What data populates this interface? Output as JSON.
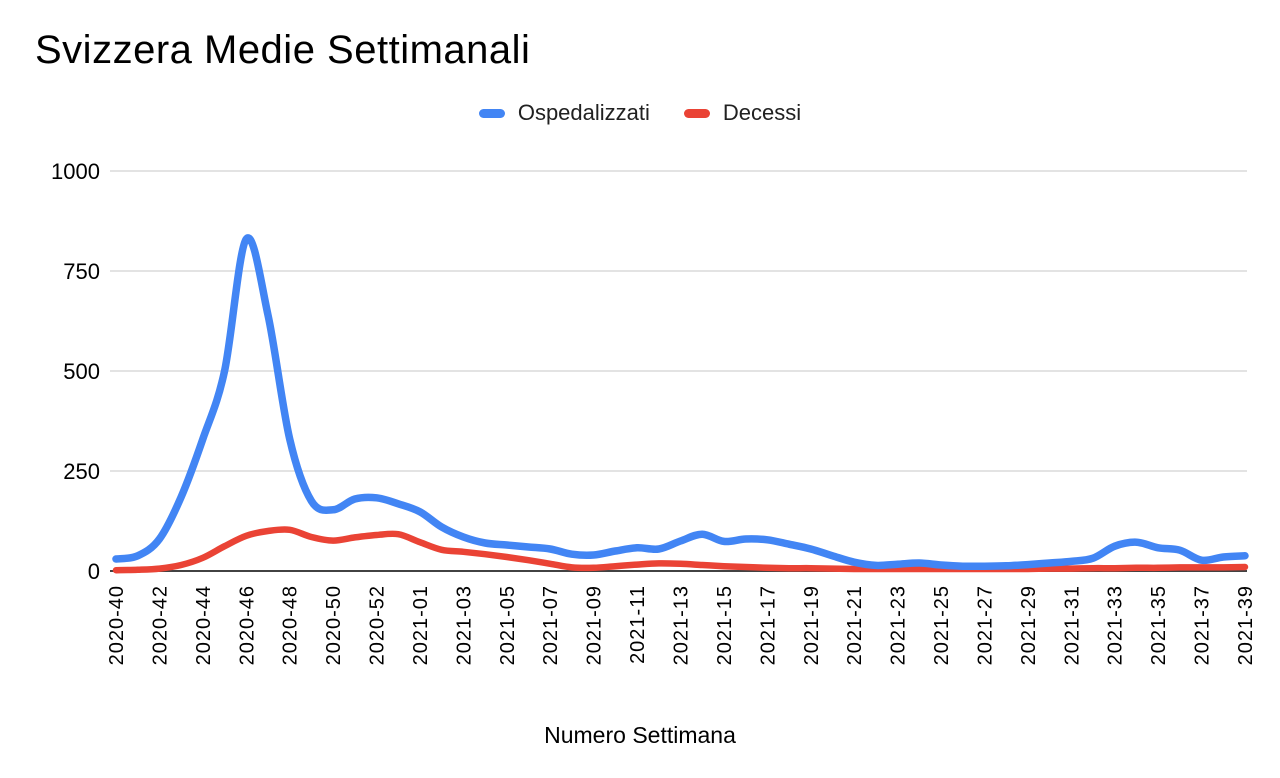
{
  "title": "Svizzera Medie Settimanali",
  "legend": [
    {
      "label": "Ospedalizzati",
      "color": "#4285F4",
      "icon": "line-dash-icon"
    },
    {
      "label": "Decessi",
      "color": "#EA4335",
      "icon": "line-dash-icon"
    }
  ],
  "chart_data": {
    "type": "line",
    "title": "Svizzera Medie Settimanali",
    "xlabel": "Numero Settimana",
    "ylabel": "",
    "ylim": [
      0,
      1000
    ],
    "y_ticks": [
      0,
      250,
      500,
      750,
      1000
    ],
    "grid": true,
    "smooth": true,
    "legend_position": "top",
    "x_tick_step": 2,
    "x_tick_labels": [
      "2020-40",
      "2020-42",
      "2020-44",
      "2020-46",
      "2020-48",
      "2020-50",
      "2020-52",
      "2021-01",
      "2021-03",
      "2021-05",
      "2021-07",
      "2021-09",
      "2021-11",
      "2021-13",
      "2021-15",
      "2021-17",
      "2021-19",
      "2021-21",
      "2021-23",
      "2021-25",
      "2021-27",
      "2021-29",
      "2021-31",
      "2021-33",
      "2021-35",
      "2021-37",
      "2021-39"
    ],
    "categories": [
      "2020-40",
      "2020-41",
      "2020-42",
      "2020-43",
      "2020-44",
      "2020-45",
      "2020-46",
      "2020-47",
      "2020-48",
      "2020-49",
      "2020-50",
      "2020-51",
      "2020-52",
      "2020-53",
      "2021-01",
      "2021-02",
      "2021-03",
      "2021-04",
      "2021-05",
      "2021-06",
      "2021-07",
      "2021-08",
      "2021-09",
      "2021-10",
      "2021-11",
      "2021-12",
      "2021-13",
      "2021-14",
      "2021-15",
      "2021-16",
      "2021-17",
      "2021-18",
      "2021-19",
      "2021-20",
      "2021-21",
      "2021-22",
      "2021-23",
      "2021-24",
      "2021-25",
      "2021-26",
      "2021-27",
      "2021-28",
      "2021-29",
      "2021-30",
      "2021-31",
      "2021-32",
      "2021-33",
      "2021-34",
      "2021-35",
      "2021-36",
      "2021-37",
      "2021-38",
      "2021-39"
    ],
    "series": [
      {
        "name": "Ospedalizzati",
        "color": "#4285F4",
        "values": [
          30,
          38,
          80,
          185,
          330,
          500,
          830,
          640,
          330,
          175,
          153,
          180,
          183,
          168,
          148,
          110,
          85,
          70,
          65,
          60,
          55,
          42,
          40,
          50,
          58,
          55,
          75,
          92,
          74,
          80,
          78,
          67,
          55,
          38,
          22,
          14,
          17,
          20,
          15,
          12,
          12,
          13,
          16,
          20,
          24,
          32,
          62,
          72,
          58,
          52,
          27,
          35,
          38
        ]
      },
      {
        "name": "Decessi",
        "color": "#EA4335",
        "values": [
          2,
          3,
          6,
          15,
          33,
          62,
          88,
          100,
          103,
          85,
          76,
          84,
          90,
          92,
          72,
          53,
          48,
          42,
          35,
          27,
          18,
          9,
          8,
          12,
          16,
          19,
          18,
          15,
          12,
          10,
          8,
          7,
          7,
          6,
          5,
          5,
          5,
          5,
          5,
          5,
          5,
          5,
          5,
          6,
          6,
          7,
          7,
          8,
          8,
          9,
          9,
          9,
          10
        ]
      }
    ]
  },
  "colors": {
    "background": "#ffffff",
    "gridline": "#dadada",
    "zero_axis": "#424242",
    "axis_text": "#000000",
    "title_text": "#000000",
    "legend_text": "#212121"
  }
}
